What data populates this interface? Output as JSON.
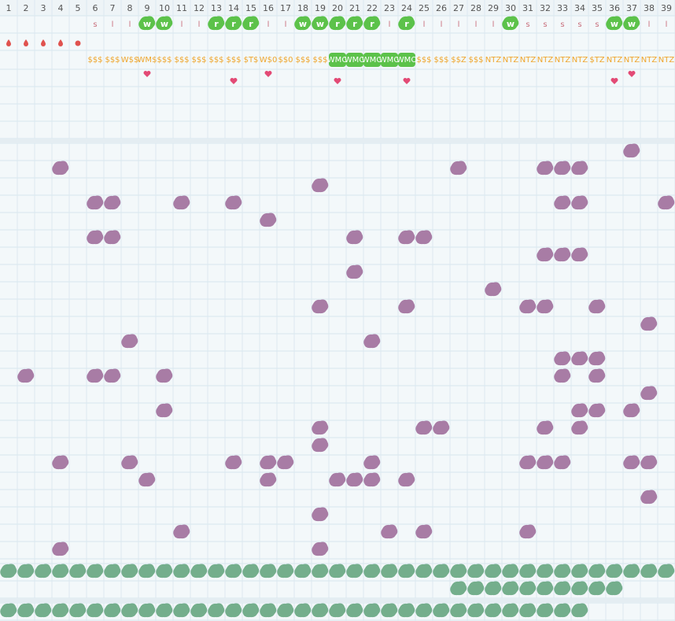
{
  "columns": [
    {
      "number": 1
    },
    {
      "number": 2
    },
    {
      "number": 3
    },
    {
      "number": 4
    },
    {
      "number": 5
    },
    {
      "number": 6,
      "tag": "s",
      "code": "$$$"
    },
    {
      "number": 7,
      "tag": "l",
      "code": "$$$"
    },
    {
      "number": 8,
      "tag": "l",
      "code": "W$$"
    },
    {
      "number": 9,
      "tag": "w",
      "code": "WM$"
    },
    {
      "number": 10,
      "tag": "w",
      "code": "$$$"
    },
    {
      "number": 11,
      "tag": "l",
      "code": "$$$"
    },
    {
      "number": 12,
      "tag": "l",
      "code": "$$$"
    },
    {
      "number": 13,
      "tag": "r",
      "code": "$$$"
    },
    {
      "number": 14,
      "tag": "r",
      "code": "$$$"
    },
    {
      "number": 15,
      "tag": "r",
      "code": "$T$"
    },
    {
      "number": 16,
      "tag": "l",
      "code": "W$0"
    },
    {
      "number": 17,
      "tag": "l",
      "code": "$$0"
    },
    {
      "number": 18,
      "tag": "w",
      "code": "$$$"
    },
    {
      "number": 19,
      "tag": "w",
      "code": "$$$"
    },
    {
      "number": 20,
      "tag": "r",
      "code": "WMO"
    },
    {
      "number": 21,
      "tag": "r",
      "code": "WMO"
    },
    {
      "number": 22,
      "tag": "r",
      "code": "WMO"
    },
    {
      "number": 23,
      "tag": "l",
      "code": "WMO"
    },
    {
      "number": 24,
      "tag": "r",
      "code": "WMO"
    },
    {
      "number": 25,
      "tag": "l",
      "code": "$$$"
    },
    {
      "number": 26,
      "tag": "l",
      "code": "$$$"
    },
    {
      "number": 27,
      "tag": "l",
      "code": "$$Z"
    },
    {
      "number": 28,
      "tag": "l",
      "code": "$$$"
    },
    {
      "number": 29,
      "tag": "l",
      "code": "NTZ"
    },
    {
      "number": 30,
      "tag": "w",
      "code": "NTZ"
    },
    {
      "number": 31,
      "tag": "s",
      "code": "NTZ"
    },
    {
      "number": 32,
      "tag": "s",
      "code": "NTZ"
    },
    {
      "number": 33,
      "tag": "s",
      "code": "NTZ"
    },
    {
      "number": 34,
      "tag": "s",
      "code": "NTZ"
    },
    {
      "number": 35,
      "tag": "s",
      "code": "$TZ"
    },
    {
      "number": 36,
      "tag": "w",
      "code": "NTZ"
    },
    {
      "number": 37,
      "tag": "w",
      "code": "NTZ"
    },
    {
      "number": 38,
      "tag": "l",
      "code": "NTZ"
    },
    {
      "number": 39,
      "tag": "l",
      "code": "NTZ"
    }
  ]
}
